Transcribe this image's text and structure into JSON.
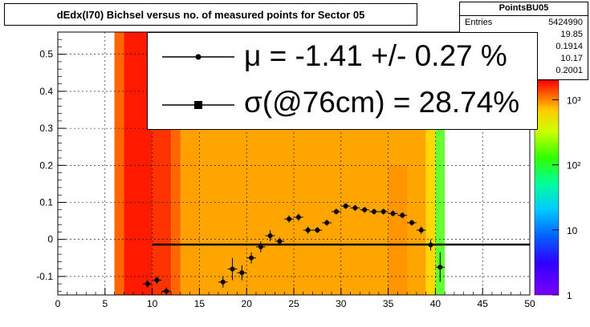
{
  "title": "dEdx(I70) Bichsel versus no. of measured points for Sector 05",
  "stats": {
    "name": "PointsBU05",
    "rows": [
      {
        "key": "Entries",
        "value": "5424990"
      },
      {
        "key": "",
        "value": "19.85"
      },
      {
        "key": "",
        "value": "0.1914"
      },
      {
        "key": "",
        "value": "10.17"
      },
      {
        "key": "",
        "value": "0.2001"
      }
    ]
  },
  "legend": {
    "mu": "μ  = -1.41 +/-  0.27 %",
    "sigma": "σ(@76cm) = 28.74%"
  },
  "chart_data": {
    "type": "scatter",
    "title": "dEdx(I70) Bichsel versus no. of measured points for Sector 05",
    "xlim": [
      0,
      50
    ],
    "ylim": [
      -0.15,
      0.56
    ],
    "x_ticks": [
      "0",
      "5",
      "10",
      "15",
      "20",
      "25",
      "30",
      "35",
      "40",
      "45",
      "50"
    ],
    "y_ticks": [
      "-0.1",
      "0",
      "0.1",
      "0.2",
      "0.3",
      "0.4",
      "0.5"
    ],
    "grid": true,
    "colorbar": {
      "scale": "log",
      "ticks": [
        "1",
        "10",
        "10²",
        "10³"
      ],
      "range": [
        1,
        2000
      ]
    },
    "fit_line": {
      "y": -0.014,
      "x": [
        10,
        50
      ]
    },
    "points": [
      {
        "x": 9.5,
        "y": -0.12,
        "err": 0.01
      },
      {
        "x": 10.5,
        "y": -0.11,
        "err": 0.01
      },
      {
        "x": 11.5,
        "y": -0.14,
        "err": 0.01
      },
      {
        "x": 17.5,
        "y": -0.115,
        "err": 0.015
      },
      {
        "x": 18.5,
        "y": -0.08,
        "err": 0.03
      },
      {
        "x": 19.5,
        "y": -0.09,
        "err": 0.02
      },
      {
        "x": 20.5,
        "y": -0.05,
        "err": 0.015
      },
      {
        "x": 21.5,
        "y": -0.02,
        "err": 0.015
      },
      {
        "x": 22.5,
        "y": 0.01,
        "err": 0.015
      },
      {
        "x": 23.5,
        "y": -0.005,
        "err": 0.01
      },
      {
        "x": 24.5,
        "y": 0.055,
        "err": 0.01
      },
      {
        "x": 25.5,
        "y": 0.06,
        "err": 0.01
      },
      {
        "x": 26.5,
        "y": 0.025,
        "err": 0.01
      },
      {
        "x": 27.5,
        "y": 0.025,
        "err": 0.008
      },
      {
        "x": 28.5,
        "y": 0.045,
        "err": 0.008
      },
      {
        "x": 29.5,
        "y": 0.075,
        "err": 0.008
      },
      {
        "x": 30.5,
        "y": 0.09,
        "err": 0.008
      },
      {
        "x": 31.5,
        "y": 0.085,
        "err": 0.008
      },
      {
        "x": 32.5,
        "y": 0.08,
        "err": 0.008
      },
      {
        "x": 33.5,
        "y": 0.075,
        "err": 0.008
      },
      {
        "x": 34.5,
        "y": 0.075,
        "err": 0.008
      },
      {
        "x": 35.5,
        "y": 0.07,
        "err": 0.008
      },
      {
        "x": 36.5,
        "y": 0.065,
        "err": 0.008
      },
      {
        "x": 37.5,
        "y": 0.045,
        "err": 0.008
      },
      {
        "x": 38.5,
        "y": 0.025,
        "err": 0.01
      },
      {
        "x": 39.5,
        "y": -0.015,
        "err": 0.015
      },
      {
        "x": 40.5,
        "y": -0.075,
        "err": 0.04
      }
    ],
    "heat_columns": [
      {
        "x0": 6,
        "x1": 7,
        "color": "#ff6600"
      },
      {
        "x0": 7,
        "x1": 10,
        "color": "#ff1a00"
      },
      {
        "x0": 10,
        "x1": 12,
        "color": "#ff3300"
      },
      {
        "x0": 12,
        "x1": 13,
        "color": "#ff6600"
      },
      {
        "x0": 13,
        "x1": 15,
        "color": "#ffa000"
      },
      {
        "x0": 15,
        "x1": 35,
        "color": "#ffa500"
      },
      {
        "x0": 35,
        "x1": 39,
        "color": "#ffa500"
      },
      {
        "x0": 39,
        "x1": 40,
        "color": "#ffd700"
      },
      {
        "x0": 40,
        "x1": 41,
        "color": "#66ff33"
      }
    ],
    "colors": {
      "heat_main": "#ffa500",
      "heat_dark": "#ff6600",
      "heat_red": "#ff2200",
      "fit_line": "#000000"
    }
  }
}
